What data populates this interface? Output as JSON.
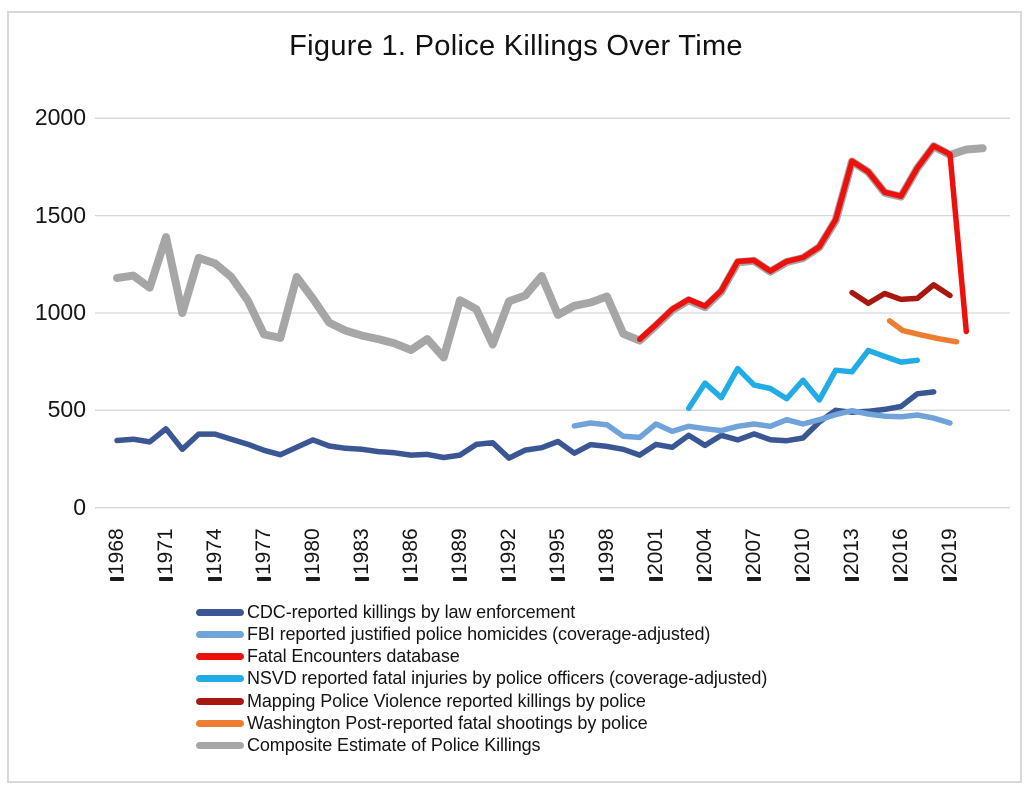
{
  "chart_data": {
    "type": "line",
    "title": "Figure 1. Police Killings Over Time",
    "xlabel": "",
    "ylabel": "",
    "y_ticks": [
      0,
      500,
      1000,
      1500,
      2000
    ],
    "y_range": [
      0,
      2000
    ],
    "x_ticks": [
      1968,
      1971,
      1974,
      1977,
      1980,
      1983,
      1986,
      1989,
      1992,
      1995,
      1998,
      2001,
      2004,
      2007,
      2010,
      2013,
      2016,
      2019
    ],
    "x_tick_rotation": 90,
    "grid": "horizontal",
    "gridline_color": "#d6d6d6",
    "background": "#ffffff",
    "frame_border_color": "#d9d9d9",
    "legend_position": "bottom-left",
    "draw_order": [
      6,
      0,
      1,
      3,
      5,
      4,
      2
    ],
    "series": [
      {
        "id": "cdc",
        "name": "CDC-reported killings by law enforcement",
        "color": "#3a5794",
        "stroke_width": 5.5,
        "start_year": 1968,
        "values": [
          345,
          352,
          338,
          405,
          300,
          378,
          378,
          352,
          326,
          295,
          272,
          310,
          348,
          317,
          305,
          300,
          288,
          282,
          270,
          274,
          258,
          270,
          325,
          334,
          255,
          296,
          308,
          340,
          280,
          324,
          315,
          300,
          270,
          325,
          310,
          372,
          320,
          372,
          348,
          379,
          349,
          344,
          358,
          440,
          500,
          490,
          495,
          505,
          520,
          585,
          595
        ]
      },
      {
        "id": "fbi",
        "name": "FBI reported justified police homicides (coverage-adjusted)",
        "color": "#6fa3d9",
        "stroke_width": 5.5,
        "start_year": 1996,
        "values": [
          420,
          435,
          426,
          367,
          361,
          430,
          392,
          418,
          406,
          396,
          418,
          430,
          418,
          452,
          430,
          452,
          478,
          498,
          481,
          470,
          467,
          476,
          460,
          435
        ]
      },
      {
        "id": "fatal-encounters",
        "name": "Fatal Encounters database",
        "color": "#ee100a",
        "stroke_width": 5.5,
        "start_year": 2000,
        "values": [
          865,
          940,
          1020,
          1070,
          1035,
          1115,
          1265,
          1270,
          1215,
          1265,
          1285,
          1340,
          1480,
          1780,
          1725,
          1620,
          1600,
          1745,
          1858,
          1815,
          905
        ]
      },
      {
        "id": "nsvd",
        "name": "NSVD reported fatal injuries by police officers (coverage-adjusted)",
        "color": "#22ace5",
        "stroke_width": 5.5,
        "start_year": 2003,
        "values": [
          510,
          640,
          565,
          715,
          630,
          612,
          560,
          655,
          553,
          706,
          698,
          808,
          777,
          748,
          757
        ]
      },
      {
        "id": "mpv",
        "name": "Mapping Police Violence reported killings by police",
        "color": "#a81710",
        "stroke_width": 5.5,
        "start_year": 2013,
        "values": [
          1105,
          1050,
          1100,
          1070,
          1075,
          1145,
          1090
        ]
      },
      {
        "id": "wapo",
        "name": "Washington Post-reported fatal shootings by police",
        "color": "#ed7d31",
        "stroke_width": 5.5,
        "x": [
          2015.3,
          2016.1,
          2017.2,
          2018.3,
          2019.4
        ],
        "values": [
          960,
          910,
          888,
          868,
          852
        ]
      },
      {
        "id": "composite",
        "name": "Composite Estimate of Police Killings",
        "color": "#a6a6a6",
        "stroke_width": 8,
        "start_year": 1968,
        "values": [
          1180,
          1192,
          1130,
          1390,
          1000,
          1283,
          1255,
          1185,
          1065,
          890,
          872,
          1185,
          1073,
          950,
          909,
          884,
          866,
          844,
          810,
          866,
          772,
          1065,
          1020,
          838,
          1060,
          1090,
          1190,
          990,
          1037,
          1054,
          1085,
          893,
          858,
          935,
          1015,
          1065,
          1030,
          1110,
          1260,
          1268,
          1212,
          1262,
          1282,
          1338,
          1475,
          1778,
          1724,
          1618,
          1598,
          1743,
          1856,
          1812,
          1840,
          1846
        ]
      }
    ]
  }
}
